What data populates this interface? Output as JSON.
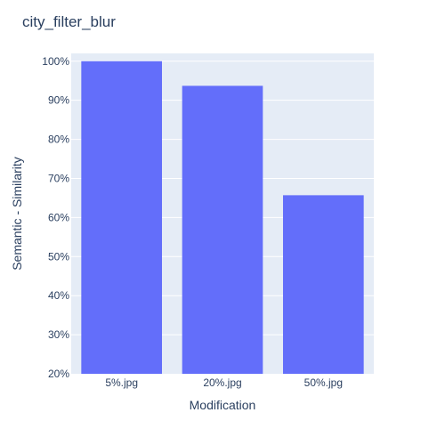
{
  "chart_data": {
    "type": "bar",
    "title": "city_filter_blur",
    "xlabel": "Modification",
    "ylabel": "Semantic - Similarity",
    "categories": [
      "5%.jpg",
      "20%.jpg",
      "50%.jpg"
    ],
    "values": [
      1.0,
      0.937,
      0.657
    ],
    "ylim": [
      0.2,
      1.02
    ],
    "yticks": [
      0.2,
      0.3,
      0.4,
      0.5,
      0.6,
      0.7,
      0.8,
      0.9,
      1.0
    ],
    "ytick_labels": [
      "20%",
      "30%",
      "40%",
      "50%",
      "60%",
      "70%",
      "80%",
      "90%",
      "100%"
    ],
    "grid": true,
    "legend": "none",
    "colors": {
      "bar": "#636efa",
      "plot_bg": "#e5ecf6",
      "grid": "#ffffff",
      "text": "#2a3f5f"
    }
  }
}
